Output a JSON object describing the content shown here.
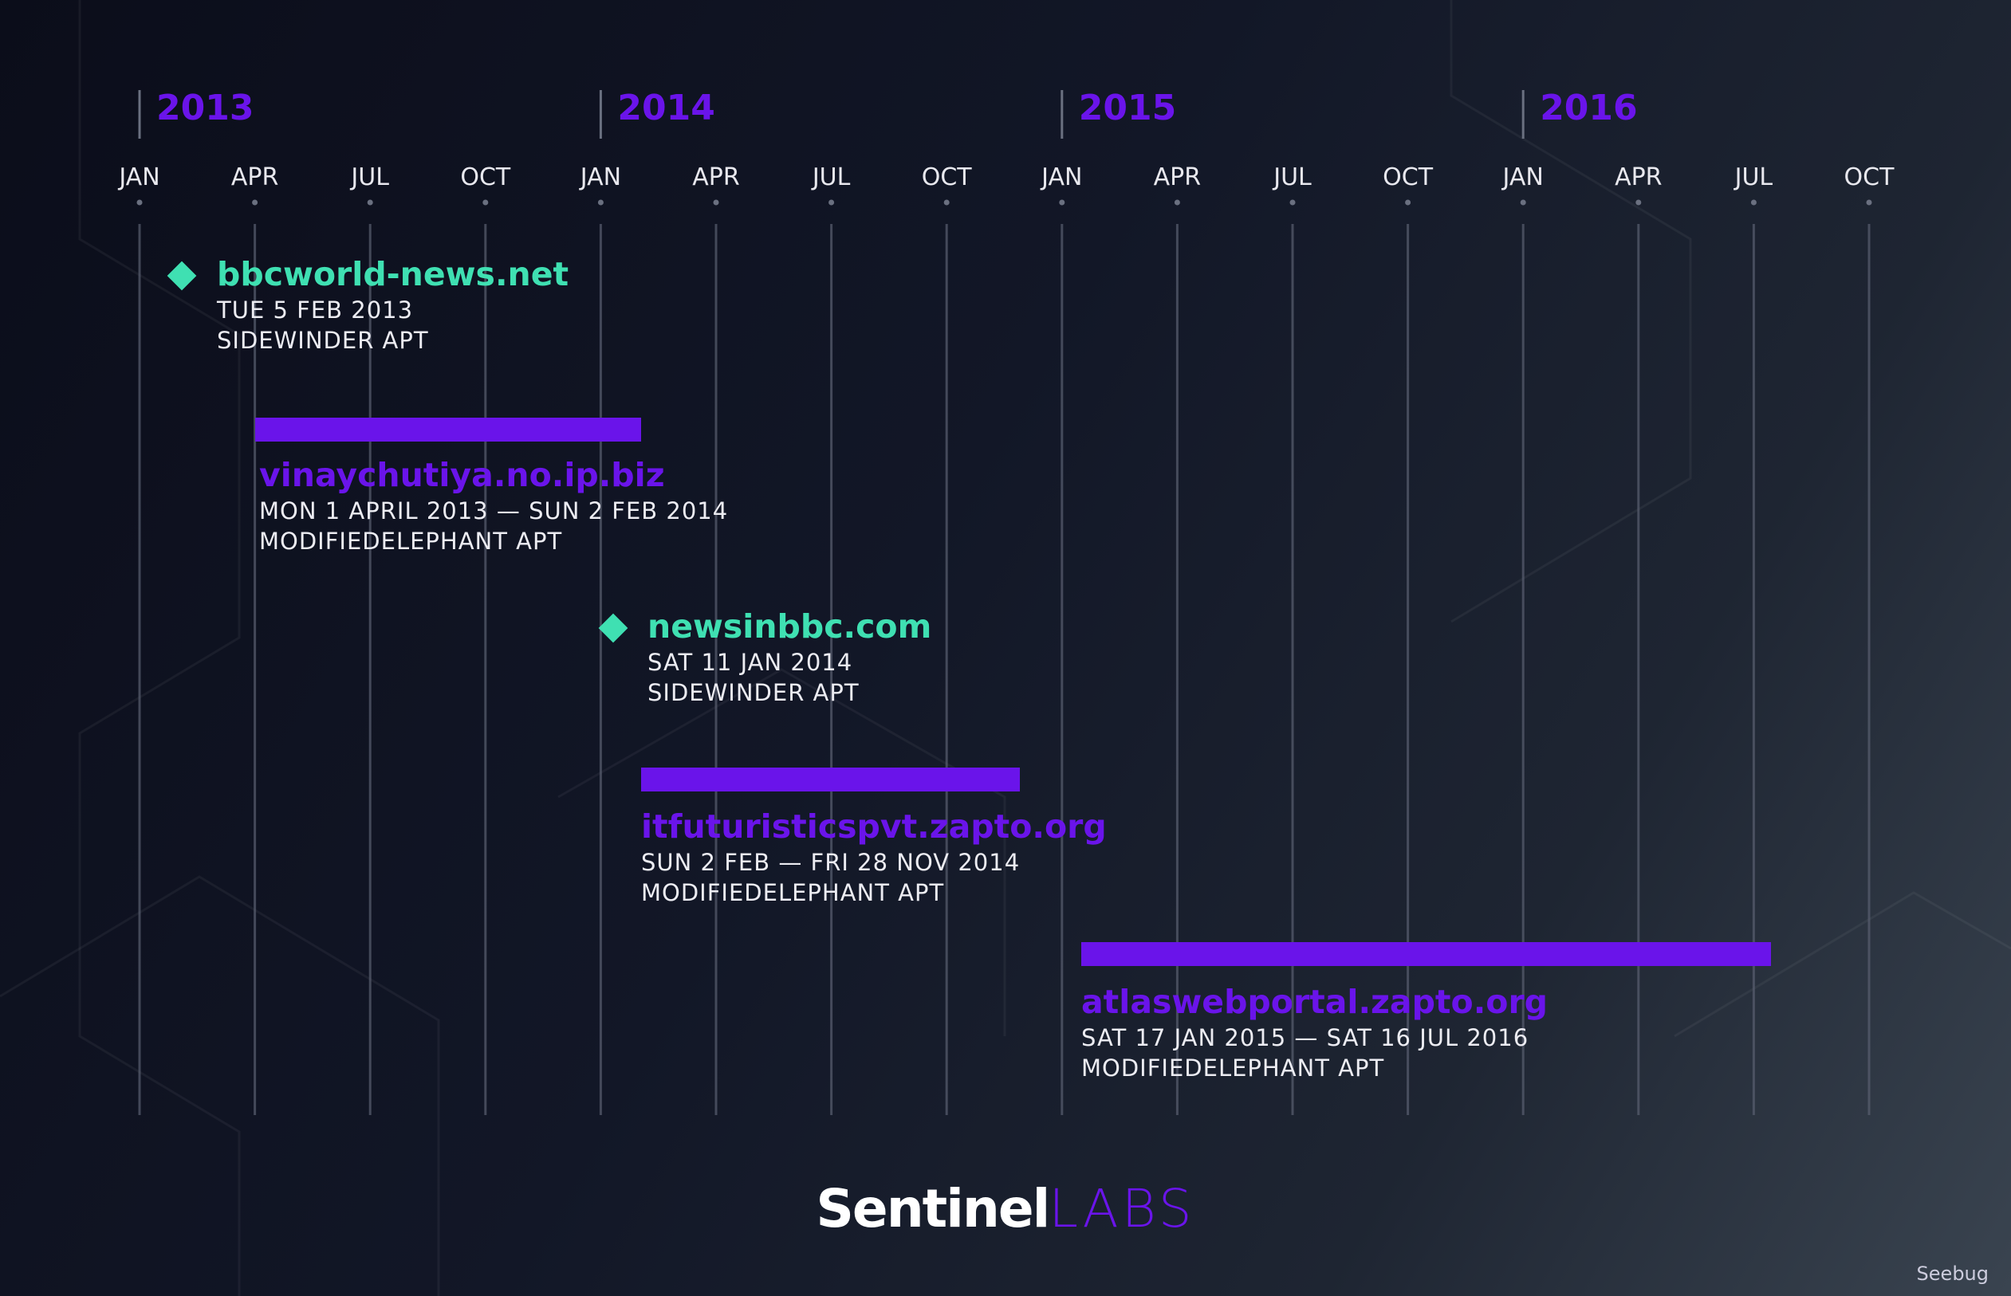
{
  "timeline": {
    "years": [
      "2013",
      "2014",
      "2015",
      "2016"
    ],
    "months": [
      "JAN",
      "APR",
      "JUL",
      "OCT",
      "JAN",
      "APR",
      "JUL",
      "OCT",
      "JAN",
      "APR",
      "JUL",
      "OCT",
      "JAN",
      "APR",
      "JUL",
      "OCT"
    ],
    "events": [
      {
        "kind": "point",
        "color": "#3fe0b2",
        "name": "bbcworld-news.net",
        "dates": "TUE 5 FEB 2013",
        "group": "SIDEWINDER APT"
      },
      {
        "kind": "range",
        "color": "#6a14ea",
        "name": "vinaychutiya.no.ip.biz",
        "dates": "MON 1 APRIL 2013 — SUN 2 FEB 2014",
        "group": "MODIFIEDELEPHANT APT"
      },
      {
        "kind": "point",
        "color": "#3fe0b2",
        "name": "newsinbbc.com",
        "dates": "SAT 11 JAN 2014",
        "group": "SIDEWINDER APT"
      },
      {
        "kind": "range",
        "color": "#6a14ea",
        "name": "itfuturisticspvt.zapto.org",
        "dates": "SUN 2 FEB — FRI 28 NOV 2014",
        "group": "MODIFIEDELEPHANT APT"
      },
      {
        "kind": "range",
        "color": "#6a14ea",
        "name": "atlaswebportal.zapto.org",
        "dates": "SAT 17 JAN 2015 — SAT 16 JUL 2016",
        "group": "MODIFIEDELEPHANT APT"
      }
    ]
  },
  "logo": {
    "brand": "Sentinel",
    "suffix": "LABS"
  },
  "watermark": "Seebug"
}
